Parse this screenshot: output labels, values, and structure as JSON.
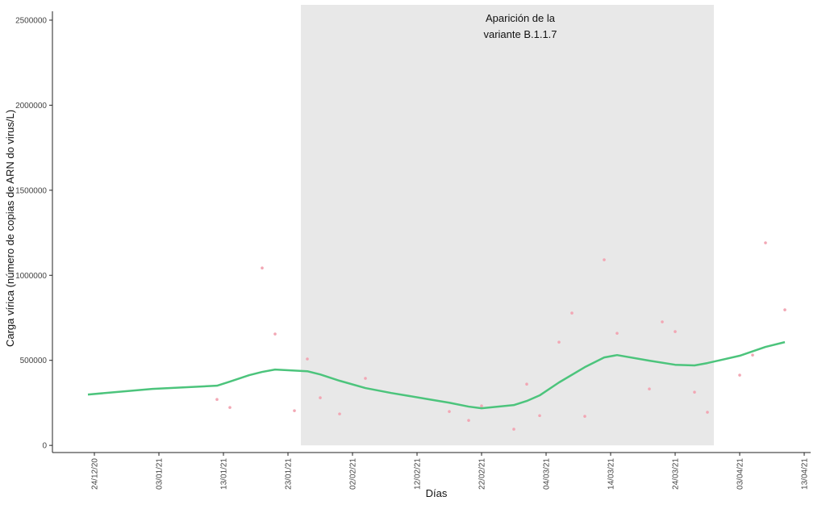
{
  "chart_data": {
    "type": "scatter",
    "x_label": "Días",
    "y_label": "Carga vírica (número de copias de ARN do virus/L)",
    "annotation": {
      "lines": [
        "Aparición de la",
        "variante B.1.1.7"
      ],
      "x": "2021-02-28",
      "region": [
        "2021-01-25",
        "2021-03-30"
      ],
      "color": "#e8e8e8"
    },
    "xlim": [
      "2020-12-17",
      "2021-04-14"
    ],
    "ylim": [
      -42000,
      2590000
    ],
    "xticks": [
      {
        "value": "2020-12-24",
        "label": "24/12/20"
      },
      {
        "value": "2021-01-03",
        "label": "03/01/21"
      },
      {
        "value": "2021-01-13",
        "label": "13/01/21"
      },
      {
        "value": "2021-01-23",
        "label": "23/01/21"
      },
      {
        "value": "2021-02-02",
        "label": "02/02/21"
      },
      {
        "value": "2021-02-12",
        "label": "12/02/21"
      },
      {
        "value": "2021-02-22",
        "label": "22/02/21"
      },
      {
        "value": "2021-03-04",
        "label": "04/03/21"
      },
      {
        "value": "2021-03-14",
        "label": "14/03/21"
      },
      {
        "value": "2021-03-24",
        "label": "24/03/21"
      },
      {
        "value": "2021-04-03",
        "label": "03/04/21"
      },
      {
        "value": "2021-04-13",
        "label": "13/04/21"
      }
    ],
    "yticks": [
      0,
      500000,
      1000000,
      1500000,
      2000000,
      2500000
    ],
    "series": [
      {
        "type": "scatter",
        "color": "#f2a7b4",
        "x": [
          "2021-01-12",
          "2021-01-14",
          "2021-01-19",
          "2021-01-21",
          "2021-01-24",
          "2021-01-26",
          "2021-01-28",
          "2021-01-31",
          "2021-02-04",
          "2021-02-17",
          "2021-02-20",
          "2021-02-22",
          "2021-02-27",
          "2021-03-01",
          "2021-03-03",
          "2021-03-06",
          "2021-03-08",
          "2021-03-10",
          "2021-03-13",
          "2021-03-15",
          "2021-03-20",
          "2021-03-22",
          "2021-03-24",
          "2021-03-27",
          "2021-03-29",
          "2021-04-03",
          "2021-04-05",
          "2021-04-07",
          "2021-04-10"
        ],
        "values": [
          270000,
          223000,
          1043000,
          655000,
          204000,
          508000,
          280000,
          185000,
          394000,
          199000,
          147000,
          232000,
          95000,
          360000,
          175000,
          607000,
          778000,
          171000,
          1091000,
          659000,
          332000,
          726000,
          669000,
          313000,
          195000,
          413000,
          531000,
          1191000,
          797000
        ]
      },
      {
        "type": "line",
        "color": "#4cc47c",
        "x": [
          "2020-12-23",
          "2021-01-02",
          "2021-01-12",
          "2021-01-14",
          "2021-01-17",
          "2021-01-19",
          "2021-01-21",
          "2021-01-26",
          "2021-01-28",
          "2021-01-31",
          "2021-02-04",
          "2021-02-08",
          "2021-02-14",
          "2021-02-17",
          "2021-02-20",
          "2021-02-22",
          "2021-02-27",
          "2021-03-01",
          "2021-03-03",
          "2021-03-06",
          "2021-03-10",
          "2021-03-13",
          "2021-03-15",
          "2021-03-20",
          "2021-03-24",
          "2021-03-27",
          "2021-03-29",
          "2021-04-03",
          "2021-04-07",
          "2021-04-10"
        ],
        "values": [
          299000,
          332000,
          351000,
          375000,
          413000,
          432000,
          446000,
          436000,
          417000,
          380000,
          337000,
          308000,
          270000,
          251000,
          228000,
          218000,
          237000,
          261000,
          294000,
          370000,
          460000,
          517000,
          531000,
          498000,
          474000,
          470000,
          484000,
          527000,
          579000,
          607000
        ]
      }
    ]
  }
}
